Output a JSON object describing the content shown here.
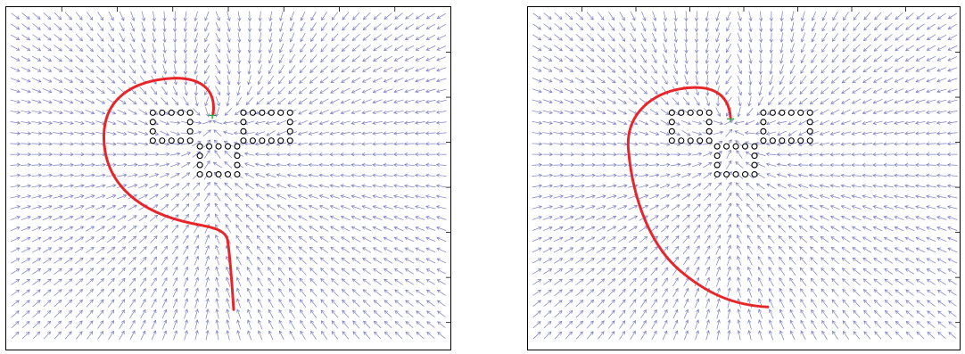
{
  "figure": {
    "panels": [
      {
        "id": "left",
        "field_color": "#6c6fbf",
        "path_color": "#e8262a",
        "obstacle_color": "#000000",
        "goal_marker_color": "#2aa83a",
        "description_tags": [
          "vector-field-arrows",
          "circle-obstacles",
          "robot-path"
        ]
      },
      {
        "id": "right",
        "field_color": "#6c6fbf",
        "path_color": "#e8262a",
        "obstacle_color": "#000000",
        "goal_marker_color": "#2aa83a",
        "description_tags": [
          "vector-field-arrows",
          "circle-obstacles",
          "robot-path"
        ]
      }
    ]
  }
}
